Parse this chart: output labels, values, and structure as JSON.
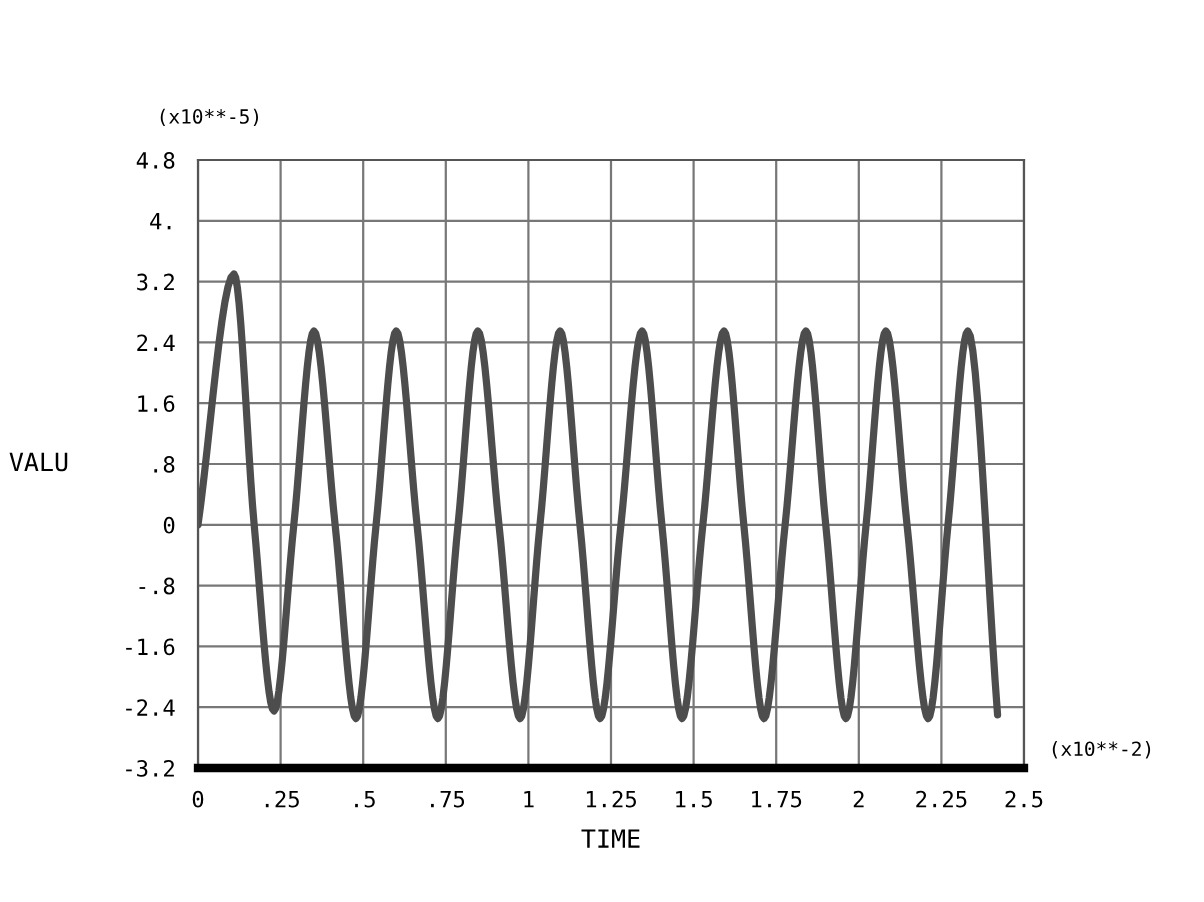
{
  "chart_data": {
    "type": "line",
    "xlabel": "TIME",
    "ylabel": "VALU",
    "annotations": [
      "(x10**-5)",
      "(x10**-2)"
    ],
    "x": [
      0,
      0.109,
      0.17,
      0.23,
      0.29,
      0.351,
      0.415,
      0.478,
      0.539,
      0.6,
      0.663,
      0.726,
      0.787,
      0.847,
      0.911,
      0.975,
      1.035,
      1.096,
      1.156,
      1.217,
      1.28,
      1.344,
      1.404,
      1.465,
      1.528,
      1.592,
      1.652,
      1.713,
      1.777,
      1.84,
      1.9,
      1.961,
      2.022,
      2.082,
      2.146,
      2.21,
      2.27,
      2.33,
      2.42
    ],
    "series": [
      {
        "color": "#4d4d4d",
        "values": [
          0,
          3.3,
          0,
          -2.45,
          0,
          2.55,
          0,
          -2.55,
          0,
          2.55,
          0,
          -2.55,
          0,
          2.55,
          0,
          -2.55,
          0,
          2.55,
          0,
          -2.55,
          0,
          2.55,
          0,
          -2.55,
          0,
          2.55,
          0,
          -2.55,
          0,
          2.55,
          0,
          -2.55,
          0,
          2.55,
          0,
          -2.55,
          0,
          2.55,
          -2.5
        ]
      }
    ],
    "xlim": [
      0,
      2.5
    ],
    "ylim": [
      -3.2,
      4.8
    ],
    "xticks": [
      0,
      {
        "value": 0.25,
        "label": ".25"
      },
      {
        "value": 0.5,
        "label": ".5"
      },
      {
        "value": 0.75,
        "label": ".75"
      },
      1,
      1.25,
      1.5,
      1.75,
      2,
      2.25,
      2.5
    ],
    "yticks": [
      {
        "value": -3.2,
        "label": "-3.2"
      },
      {
        "value": -2.4,
        "label": "-2.4"
      },
      {
        "value": -1.6,
        "label": "-1.6"
      },
      {
        "value": -0.8,
        "label": "-.8"
      },
      0,
      {
        "value": 0.8,
        "label": ".8"
      },
      {
        "value": 1.6,
        "label": "1.6"
      },
      {
        "value": 2.4,
        "label": "2.4"
      },
      {
        "value": 3.2,
        "label": "3.2"
      },
      {
        "value": 4,
        "label": "4."
      },
      {
        "value": 4.8,
        "label": "4.8"
      }
    ],
    "grid": true,
    "legend": false,
    "marker": "none",
    "line_style": "solid"
  }
}
